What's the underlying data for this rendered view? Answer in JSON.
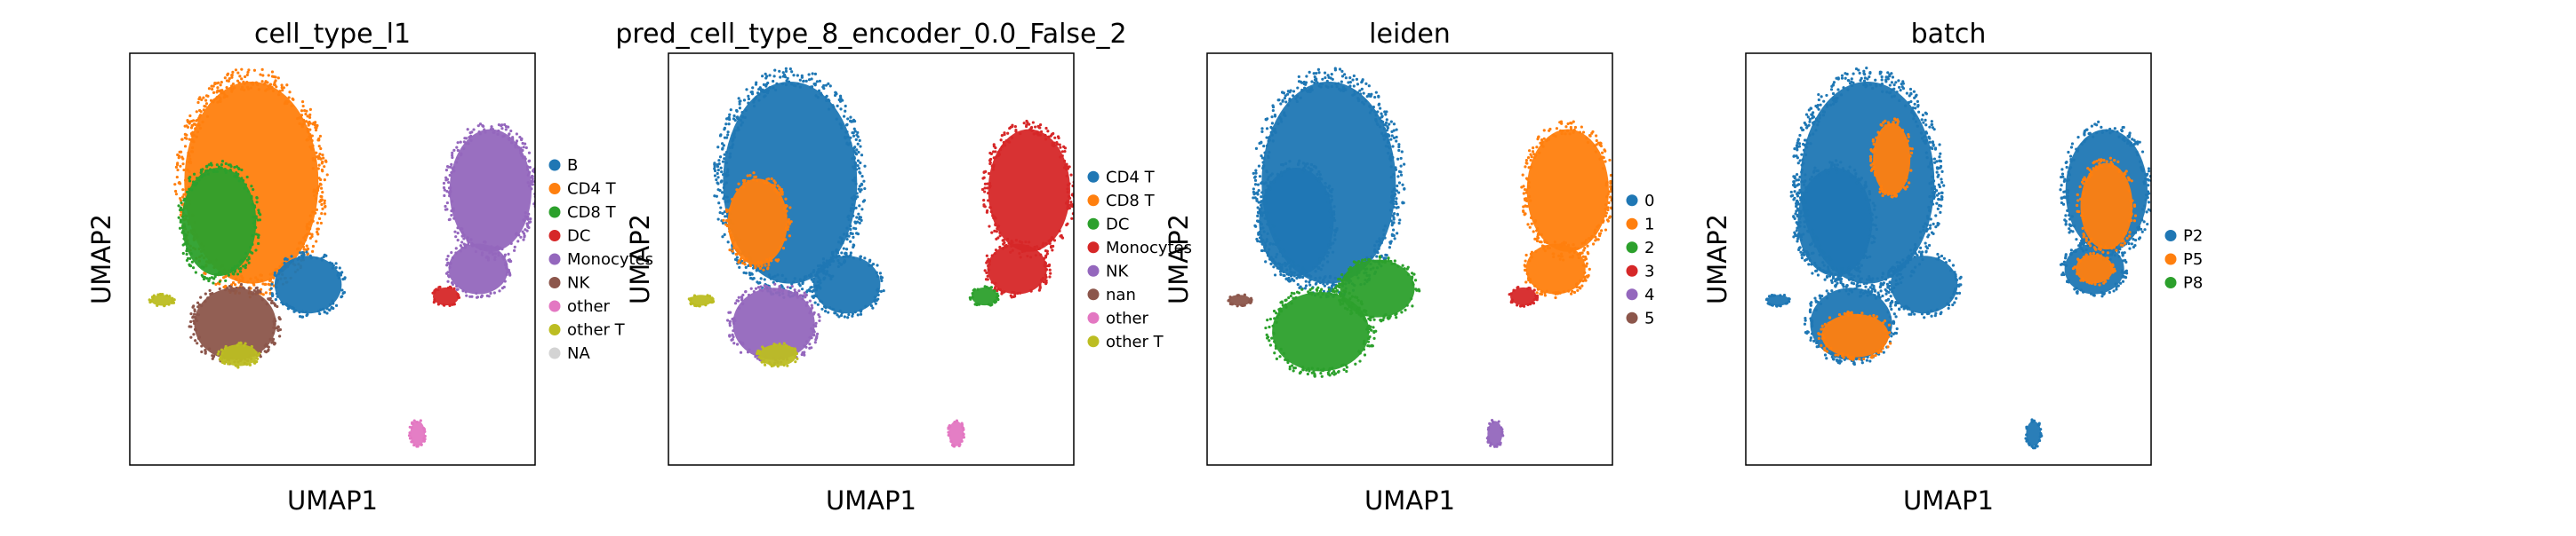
{
  "chart_data": [
    {
      "type": "scatter",
      "title": "cell_type_l1",
      "xlabel": "UMAP1",
      "ylabel": "UMAP2",
      "legend_position": "right",
      "grid": false,
      "legend": [
        {
          "name": "B",
          "color": "#1f77b4"
        },
        {
          "name": "CD4 T",
          "color": "#ff7f0e"
        },
        {
          "name": "CD8 T",
          "color": "#2ca02c"
        },
        {
          "name": "DC",
          "color": "#d62728"
        },
        {
          "name": "Monocytes",
          "color": "#9467bd"
        },
        {
          "name": "NK",
          "color": "#8c564b"
        },
        {
          "name": "other",
          "color": "#e377c2"
        },
        {
          "name": "other T",
          "color": "#bcbd22"
        },
        {
          "name": "NA",
          "color": "#d3d3d3"
        }
      ],
      "regions": [
        {
          "series": "CD4 T",
          "shape": "ellipse",
          "x": 3.0,
          "y": 7.2,
          "rx": 1.8,
          "ry": 2.8
        },
        {
          "series": "CD8 T",
          "shape": "ellipse",
          "x": 2.2,
          "y": 6.2,
          "rx": 1.0,
          "ry": 1.5
        },
        {
          "series": "B",
          "shape": "ellipse",
          "x": 4.4,
          "y": 4.6,
          "rx": 0.9,
          "ry": 0.8
        },
        {
          "series": "NK",
          "shape": "ellipse",
          "x": 2.6,
          "y": 3.6,
          "rx": 1.1,
          "ry": 1.0
        },
        {
          "series": "other T",
          "shape": "ellipse",
          "x": 2.7,
          "y": 2.8,
          "rx": 0.5,
          "ry": 0.3
        },
        {
          "series": "other T",
          "shape": "ellipse",
          "x": 0.8,
          "y": 4.2,
          "rx": 0.3,
          "ry": 0.15
        },
        {
          "series": "Monocytes",
          "shape": "ellipse",
          "x": 8.9,
          "y": 7.0,
          "rx": 1.1,
          "ry": 1.7
        },
        {
          "series": "Monocytes",
          "shape": "ellipse",
          "x": 8.6,
          "y": 5.0,
          "rx": 0.8,
          "ry": 0.7
        },
        {
          "series": "DC",
          "shape": "ellipse",
          "x": 7.8,
          "y": 4.3,
          "rx": 0.35,
          "ry": 0.25
        },
        {
          "series": "other",
          "shape": "ellipse",
          "x": 7.1,
          "y": 0.8,
          "rx": 0.2,
          "ry": 0.35
        }
      ]
    },
    {
      "type": "scatter",
      "title": "pred_cell_type_8_encoder_0.0_False_2",
      "xlabel": "UMAP1",
      "ylabel": "UMAP2",
      "legend_position": "right",
      "grid": false,
      "legend": [
        {
          "name": "CD4 T",
          "color": "#1f77b4"
        },
        {
          "name": "CD8 T",
          "color": "#ff7f0e"
        },
        {
          "name": "DC",
          "color": "#2ca02c"
        },
        {
          "name": "Monocytes",
          "color": "#d62728"
        },
        {
          "name": "NK",
          "color": "#9467bd"
        },
        {
          "name": "nan",
          "color": "#8c564b"
        },
        {
          "name": "other",
          "color": "#e377c2"
        },
        {
          "name": "other T",
          "color": "#bcbd22"
        }
      ],
      "regions": [
        {
          "series": "CD4 T",
          "shape": "ellipse",
          "x": 3.0,
          "y": 7.2,
          "rx": 1.8,
          "ry": 2.8
        },
        {
          "series": "CD8 T",
          "shape": "ellipse",
          "x": 2.2,
          "y": 6.2,
          "rx": 0.8,
          "ry": 1.2
        },
        {
          "series": "CD4 T",
          "shape": "ellipse",
          "x": 4.4,
          "y": 4.6,
          "rx": 0.9,
          "ry": 0.8
        },
        {
          "series": "NK",
          "shape": "ellipse",
          "x": 2.6,
          "y": 3.6,
          "rx": 1.1,
          "ry": 1.0
        },
        {
          "series": "other T",
          "shape": "ellipse",
          "x": 2.7,
          "y": 2.8,
          "rx": 0.5,
          "ry": 0.3
        },
        {
          "series": "other T",
          "shape": "ellipse",
          "x": 0.8,
          "y": 4.2,
          "rx": 0.3,
          "ry": 0.15
        },
        {
          "series": "Monocytes",
          "shape": "ellipse",
          "x": 8.9,
          "y": 7.0,
          "rx": 1.1,
          "ry": 1.7
        },
        {
          "series": "Monocytes",
          "shape": "ellipse",
          "x": 8.6,
          "y": 5.0,
          "rx": 0.8,
          "ry": 0.7
        },
        {
          "series": "DC",
          "shape": "ellipse",
          "x": 7.8,
          "y": 4.3,
          "rx": 0.35,
          "ry": 0.25
        },
        {
          "series": "other",
          "shape": "ellipse",
          "x": 7.1,
          "y": 0.8,
          "rx": 0.2,
          "ry": 0.35
        }
      ]
    },
    {
      "type": "scatter",
      "title": "leiden",
      "xlabel": "UMAP1",
      "ylabel": "UMAP2",
      "legend_position": "right",
      "grid": false,
      "legend": [
        {
          "name": "0",
          "color": "#1f77b4"
        },
        {
          "name": "1",
          "color": "#ff7f0e"
        },
        {
          "name": "2",
          "color": "#2ca02c"
        },
        {
          "name": "3",
          "color": "#d62728"
        },
        {
          "name": "4",
          "color": "#9467bd"
        },
        {
          "name": "5",
          "color": "#8c564b"
        }
      ],
      "regions": [
        {
          "series": "0",
          "shape": "ellipse",
          "x": 3.0,
          "y": 7.2,
          "rx": 1.8,
          "ry": 2.8
        },
        {
          "series": "0",
          "shape": "ellipse",
          "x": 2.2,
          "y": 6.2,
          "rx": 1.0,
          "ry": 1.5
        },
        {
          "series": "2",
          "shape": "ellipse",
          "x": 4.2,
          "y": 4.5,
          "rx": 1.0,
          "ry": 0.8
        },
        {
          "series": "2",
          "shape": "ellipse",
          "x": 2.8,
          "y": 3.4,
          "rx": 1.3,
          "ry": 1.1
        },
        {
          "series": "5",
          "shape": "ellipse",
          "x": 0.8,
          "y": 4.2,
          "rx": 0.3,
          "ry": 0.15
        },
        {
          "series": "1",
          "shape": "ellipse",
          "x": 8.9,
          "y": 7.0,
          "rx": 1.1,
          "ry": 1.7
        },
        {
          "series": "1",
          "shape": "ellipse",
          "x": 8.6,
          "y": 5.0,
          "rx": 0.8,
          "ry": 0.7
        },
        {
          "series": "3",
          "shape": "ellipse",
          "x": 7.8,
          "y": 4.3,
          "rx": 0.35,
          "ry": 0.25
        },
        {
          "series": "4",
          "shape": "ellipse",
          "x": 7.1,
          "y": 0.8,
          "rx": 0.2,
          "ry": 0.35
        }
      ]
    },
    {
      "type": "scatter",
      "title": "batch",
      "xlabel": "UMAP1",
      "ylabel": "UMAP2",
      "legend_position": "right",
      "grid": false,
      "legend": [
        {
          "name": "P2",
          "color": "#1f77b4"
        },
        {
          "name": "P5",
          "color": "#ff7f0e"
        },
        {
          "name": "P8",
          "color": "#2ca02c"
        }
      ],
      "regions": [
        {
          "series": "P2",
          "shape": "ellipse",
          "x": 3.0,
          "y": 7.2,
          "rx": 1.8,
          "ry": 2.8
        },
        {
          "series": "P2",
          "shape": "ellipse",
          "x": 2.2,
          "y": 6.2,
          "rx": 1.0,
          "ry": 1.5
        },
        {
          "series": "P2",
          "shape": "ellipse",
          "x": 4.4,
          "y": 4.6,
          "rx": 0.9,
          "ry": 0.8
        },
        {
          "series": "P2",
          "shape": "ellipse",
          "x": 2.6,
          "y": 3.6,
          "rx": 1.1,
          "ry": 1.0
        },
        {
          "series": "P2",
          "shape": "ellipse",
          "x": 0.8,
          "y": 4.2,
          "rx": 0.3,
          "ry": 0.15
        },
        {
          "series": "P2",
          "shape": "ellipse",
          "x": 8.9,
          "y": 7.0,
          "rx": 1.1,
          "ry": 1.7
        },
        {
          "series": "P2",
          "shape": "ellipse",
          "x": 8.6,
          "y": 5.0,
          "rx": 0.8,
          "ry": 0.7
        },
        {
          "series": "P2",
          "shape": "ellipse",
          "x": 7.1,
          "y": 0.8,
          "rx": 0.2,
          "ry": 0.35
        },
        {
          "series": "P5",
          "shape": "ellipse",
          "x": 2.7,
          "y": 3.3,
          "rx": 0.9,
          "ry": 0.6
        },
        {
          "series": "P5",
          "shape": "ellipse",
          "x": 8.9,
          "y": 6.6,
          "rx": 0.7,
          "ry": 1.2
        },
        {
          "series": "P5",
          "shape": "ellipse",
          "x": 3.6,
          "y": 7.8,
          "rx": 0.5,
          "ry": 1.0
        },
        {
          "series": "P5",
          "shape": "ellipse",
          "x": 8.6,
          "y": 5.0,
          "rx": 0.5,
          "ry": 0.4
        }
      ]
    }
  ]
}
